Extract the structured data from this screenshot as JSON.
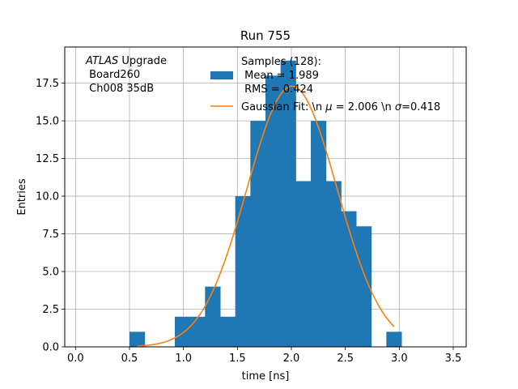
{
  "chart_data": {
    "type": "bar",
    "title": "Run 755",
    "xlabel": "time [ns]",
    "ylabel": "Entries",
    "xlim": [
      -0.1,
      3.62
    ],
    "ylim": [
      0,
      19.9
    ],
    "grid": true,
    "legend_position": "top-right",
    "xticks": [
      "0.0",
      "0.5",
      "1.0",
      "1.5",
      "2.0",
      "2.5",
      "3.0",
      "3.5"
    ],
    "xtick_values": [
      0,
      0.5,
      1.0,
      1.5,
      2.0,
      2.5,
      3.0,
      3.5
    ],
    "yticks": [
      "0.0",
      "2.5",
      "5.0",
      "7.5",
      "10.0",
      "12.5",
      "15.0",
      "17.5"
    ],
    "ytick_values": [
      0,
      2.5,
      5.0,
      7.5,
      10.0,
      12.5,
      15.0,
      17.5
    ],
    "histogram": {
      "name": "Samples (128):\n Mean = 1.989\n RMS = 0.424",
      "color": "#1f77b4",
      "bins": [
        {
          "x0": 0.5,
          "x1": 0.64,
          "value": 1
        },
        {
          "x0": 0.92,
          "x1": 1.06,
          "value": 2
        },
        {
          "x0": 1.06,
          "x1": 1.2,
          "value": 2
        },
        {
          "x0": 1.2,
          "x1": 1.34,
          "value": 4
        },
        {
          "x0": 1.34,
          "x1": 1.48,
          "value": 2
        },
        {
          "x0": 1.48,
          "x1": 1.62,
          "value": 10
        },
        {
          "x0": 1.62,
          "x1": 1.76,
          "value": 15
        },
        {
          "x0": 1.76,
          "x1": 1.9,
          "value": 18
        },
        {
          "x0": 1.9,
          "x1": 2.04,
          "value": 19
        },
        {
          "x0": 2.04,
          "x1": 2.18,
          "value": 11
        },
        {
          "x0": 2.18,
          "x1": 2.32,
          "value": 15
        },
        {
          "x0": 2.32,
          "x1": 2.46,
          "value": 11
        },
        {
          "x0": 2.46,
          "x1": 2.6,
          "value": 9
        },
        {
          "x0": 2.6,
          "x1": 2.74,
          "value": 8
        },
        {
          "x0": 2.88,
          "x1": 3.02,
          "value": 1
        }
      ]
    },
    "fit": {
      "name": "Gaussian Fit: \\n $\\mu$ = 2.006 \\n $\\sigma$=0.418",
      "color": "#ff7f0e",
      "amplitude": 17.3,
      "mu": 2.006,
      "sigma": 0.418,
      "x_range": [
        0.57,
        2.95
      ]
    },
    "annotation": {
      "line1_italic": "ATLAS",
      "line1_rest": " Upgrade",
      "line2": " Board260",
      "line3": " Ch008 35dB"
    }
  },
  "legend": {
    "hist_line1": "Samples (128):",
    "hist_line2": " Mean = 1.989",
    "hist_line3": " RMS = 0.424",
    "fit_pre": "Gaussian Fit: \\n ",
    "fit_mu": "μ",
    "fit_mid": " = 2.006 \\n ",
    "fit_sigma": "σ",
    "fit_post": "=0.418"
  }
}
